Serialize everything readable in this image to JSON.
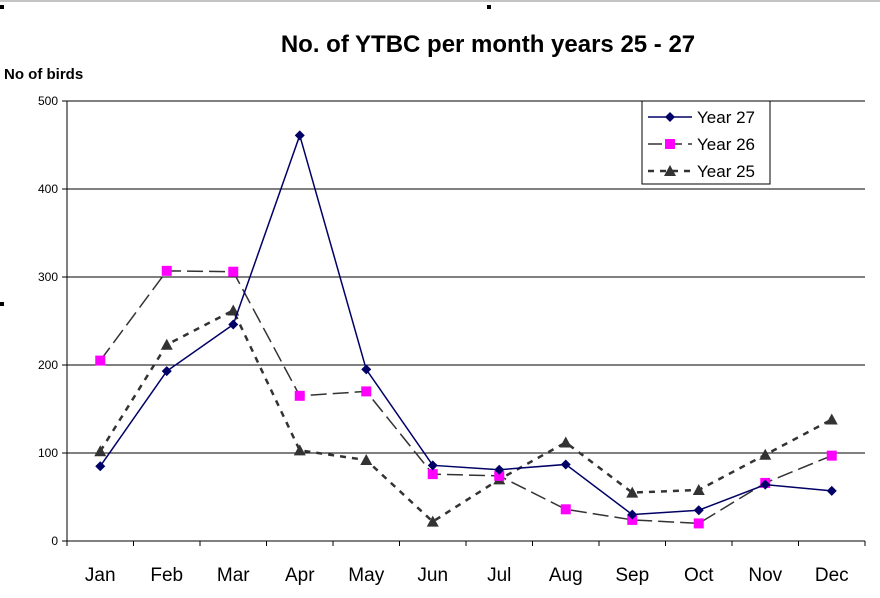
{
  "chart_data": {
    "type": "line",
    "title": "No. of YTBC per month years 25 - 27",
    "ylabel": "No of birds",
    "xlabel": "",
    "categories": [
      "Jan",
      "Feb",
      "Mar",
      "Apr",
      "May",
      "Jun",
      "Jul",
      "Aug",
      "Sep",
      "Oct",
      "Nov",
      "Dec"
    ],
    "ylim": [
      0,
      500
    ],
    "yticks": [
      "0",
      "100",
      "200",
      "300",
      "400",
      "500"
    ],
    "grid": true,
    "legend_position": "top-right",
    "series": [
      {
        "name": "Year 27",
        "color": "#000066",
        "dash": "solid",
        "marker": "diamond",
        "values": [
          85,
          193,
          246,
          461,
          195,
          86,
          81,
          87,
          30,
          35,
          64,
          57
        ]
      },
      {
        "name": "Year 26",
        "color": "#FF00FF",
        "line_color": "#333333",
        "dash": "long-dash",
        "marker": "square",
        "values": [
          205,
          307,
          306,
          165,
          170,
          76,
          74,
          36,
          24,
          20,
          66,
          97
        ]
      },
      {
        "name": "Year 25",
        "color": "#333333",
        "dash": "short-dash",
        "marker": "triangle",
        "values": [
          102,
          223,
          262,
          103,
          92,
          22,
          70,
          112,
          55,
          58,
          98,
          138
        ]
      }
    ]
  }
}
